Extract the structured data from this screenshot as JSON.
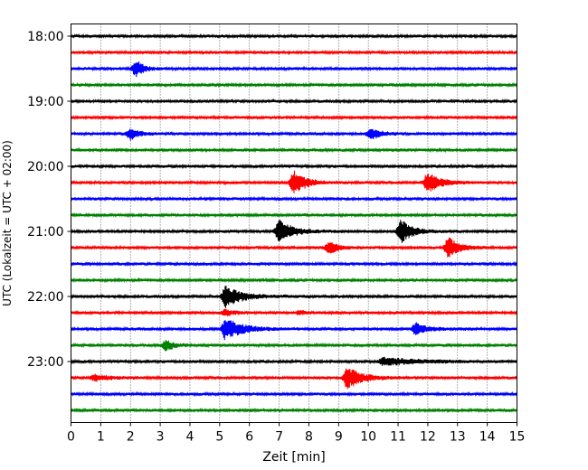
{
  "chart_data": {
    "type": "line",
    "title": "",
    "xlabel": "Zeit  [min]",
    "ylabel": "UTC (Lokalzeit = UTC + 02:00)",
    "xlim": [
      0,
      15
    ],
    "x_ticks": [
      "0",
      "1",
      "2",
      "3",
      "4",
      "5",
      "6",
      "7",
      "8",
      "9",
      "10",
      "11",
      "12",
      "13",
      "14",
      "15"
    ],
    "y_ticks": [
      "18:00",
      "19:00",
      "20:00",
      "21:00",
      "22:00",
      "23:00"
    ],
    "grid": "vertical dotted",
    "trace_interval_min": 15,
    "colors": [
      "#000000",
      "#ff0000",
      "#0000ff",
      "#008000"
    ],
    "series": [
      {
        "name": "18:00",
        "color": "#000000",
        "events": []
      },
      {
        "name": "18:15",
        "color": "#ff0000",
        "events": []
      },
      {
        "name": "18:30",
        "color": "#0000ff",
        "events": [
          {
            "t": 2.2,
            "amp": 2.4,
            "dur": 0.5
          }
        ]
      },
      {
        "name": "18:45",
        "color": "#008000",
        "events": []
      },
      {
        "name": "19:00",
        "color": "#000000",
        "events": []
      },
      {
        "name": "19:15",
        "color": "#ff0000",
        "events": []
      },
      {
        "name": "19:30",
        "color": "#0000ff",
        "events": [
          {
            "t": 2.0,
            "amp": 1.6,
            "dur": 0.6
          },
          {
            "t": 10.1,
            "amp": 1.5,
            "dur": 0.7
          }
        ]
      },
      {
        "name": "19:45",
        "color": "#008000",
        "events": []
      },
      {
        "name": "20:00",
        "color": "#000000",
        "events": []
      },
      {
        "name": "20:15",
        "color": "#ff0000",
        "events": [
          {
            "t": 7.5,
            "amp": 3.4,
            "dur": 0.8
          },
          {
            "t": 12.0,
            "amp": 2.8,
            "dur": 0.9
          }
        ]
      },
      {
        "name": "20:30",
        "color": "#0000ff",
        "events": []
      },
      {
        "name": "20:45",
        "color": "#008000",
        "events": []
      },
      {
        "name": "21:00",
        "color": "#000000",
        "events": [
          {
            "t": 7.0,
            "amp": 3.0,
            "dur": 1.0
          },
          {
            "t": 11.1,
            "amp": 3.2,
            "dur": 0.8
          }
        ]
      },
      {
        "name": "21:15",
        "color": "#ff0000",
        "events": [
          {
            "t": 8.7,
            "amp": 1.7,
            "dur": 0.6
          },
          {
            "t": 12.7,
            "amp": 2.8,
            "dur": 0.8
          }
        ]
      },
      {
        "name": "21:30",
        "color": "#0000ff",
        "events": []
      },
      {
        "name": "21:45",
        "color": "#008000",
        "events": []
      },
      {
        "name": "22:00",
        "color": "#000000",
        "events": [
          {
            "t": 5.2,
            "amp": 3.0,
            "dur": 1.1
          }
        ]
      },
      {
        "name": "22:15",
        "color": "#ff0000",
        "events": [
          {
            "t": 5.2,
            "amp": 0.8,
            "dur": 0.6
          },
          {
            "t": 7.7,
            "amp": 0.6,
            "dur": 0.4
          }
        ]
      },
      {
        "name": "22:30",
        "color": "#0000ff",
        "events": [
          {
            "t": 5.2,
            "amp": 3.0,
            "dur": 1.2
          },
          {
            "t": 11.6,
            "amp": 1.6,
            "dur": 0.8
          }
        ]
      },
      {
        "name": "22:45",
        "color": "#008000",
        "events": [
          {
            "t": 3.2,
            "amp": 1.4,
            "dur": 0.6
          }
        ]
      },
      {
        "name": "23:00",
        "color": "#000000",
        "events": [
          {
            "t": 10.5,
            "amp": 1.0,
            "dur": 2.5
          }
        ]
      },
      {
        "name": "23:15",
        "color": "#ff0000",
        "events": [
          {
            "t": 9.3,
            "amp": 3.0,
            "dur": 1.0
          },
          {
            "t": 0.8,
            "amp": 0.9,
            "dur": 1.0
          }
        ]
      },
      {
        "name": "23:30",
        "color": "#0000ff",
        "events": []
      },
      {
        "name": "23:45",
        "color": "#008000",
        "events": []
      }
    ]
  }
}
